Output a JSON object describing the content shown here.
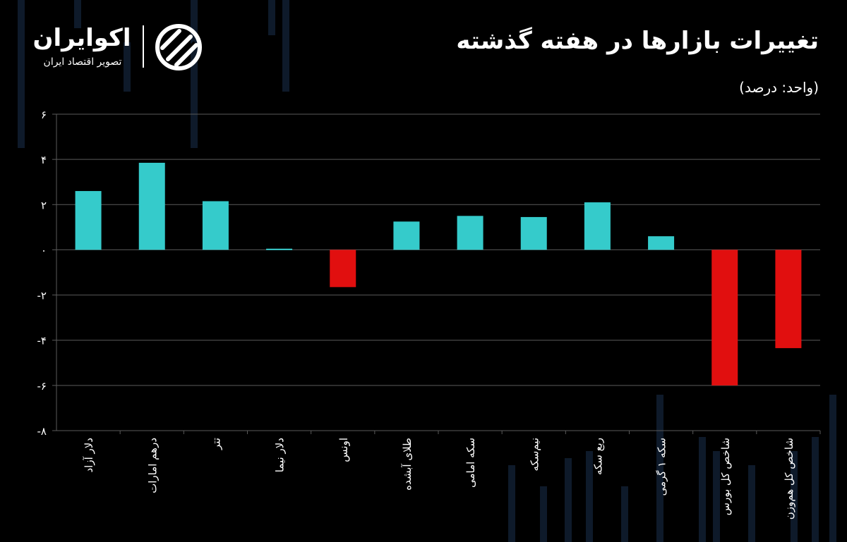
{
  "header": {
    "title": "تغییرات بازارها در هفته گذشته",
    "unit": "(واحد: درصد)"
  },
  "logo": {
    "name": "اکوایران",
    "tagline": "تصویر اقتصاد ایران",
    "icon": "ecoiran-logo-icon"
  },
  "colors": {
    "positive": "#35CBCB",
    "negative": "#E10F0F",
    "background": "#000000",
    "grid": "#5A5A5A",
    "decoration": "#0E1A2A"
  },
  "chart_data": {
    "type": "bar",
    "categories": [
      "دلار آزاد",
      "درهم امارات",
      "تتر",
      "دلار نیما",
      "اونس",
      "طلای آبشده",
      "سکه امامی",
      "نیم‌سکه",
      "ربع سکه",
      "سکه ۱ گرمی",
      "شاخص کل بورس",
      "شاخص کل هم‌وزن"
    ],
    "values": [
      2.6,
      3.85,
      2.15,
      0.05,
      -1.65,
      1.25,
      1.5,
      1.45,
      2.1,
      0.6,
      -6.0,
      -4.35
    ],
    "ylim": [
      -8,
      6
    ],
    "yticks": [
      6,
      4,
      2,
      0,
      -2,
      -4,
      -6,
      -8
    ],
    "ytick_labels": [
      "۶",
      "۴",
      "۲",
      "۰",
      "-۲",
      "-۴",
      "-۶",
      "-۸"
    ],
    "grid": true,
    "legend": "none"
  }
}
